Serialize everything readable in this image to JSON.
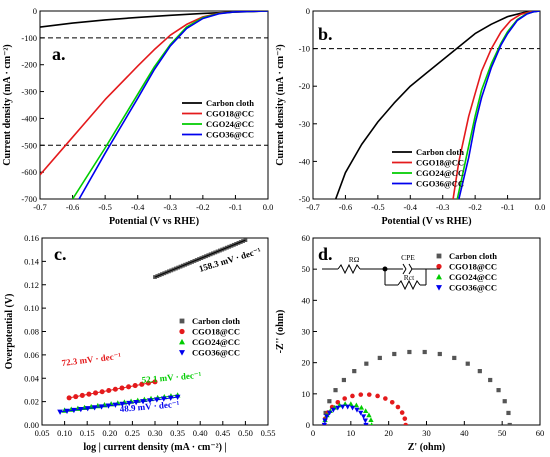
{
  "chart_data": [
    {
      "panel": "a.",
      "type": "line",
      "xlabel": "Potential (V vs RHE)",
      "ylabel": "Current density (mA · cm⁻²)",
      "xlim": [
        -0.7,
        0.0
      ],
      "ylim": [
        -700,
        0
      ],
      "xticks": [
        "-0.7",
        "-0.6",
        "-0.5",
        "-0.4",
        "-0.3",
        "-0.2",
        "-0.1",
        "0.0"
      ],
      "yticks": [
        "0",
        "-100",
        "-200",
        "-300",
        "-400",
        "-500",
        "-600",
        "-700"
      ],
      "hlines": [
        -100,
        -500
      ],
      "legend_position": "lower-right",
      "series": [
        {
          "name": "Carbon cloth",
          "color": "#000000",
          "points": [
            [
              -0.7,
              -60
            ],
            [
              -0.6,
              -45
            ],
            [
              -0.5,
              -33
            ],
            [
              -0.4,
              -24
            ],
            [
              -0.3,
              -16
            ],
            [
              -0.2,
              -9
            ],
            [
              -0.1,
              -4
            ],
            [
              0.0,
              0
            ]
          ]
        },
        {
          "name": "CGO18@CC",
          "color": "#e41a1c",
          "points": [
            [
              -0.7,
              -610
            ],
            [
              -0.6,
              -470
            ],
            [
              -0.5,
              -330
            ],
            [
              -0.4,
              -205
            ],
            [
              -0.35,
              -145
            ],
            [
              -0.3,
              -90
            ],
            [
              -0.25,
              -50
            ],
            [
              -0.2,
              -22
            ],
            [
              -0.15,
              -8
            ],
            [
              -0.1,
              -3
            ],
            [
              0.0,
              0
            ]
          ]
        },
        {
          "name": "CGO24@CC",
          "color": "#00cc00",
          "points": [
            [
              -0.6,
              -700
            ],
            [
              -0.5,
              -510
            ],
            [
              -0.4,
              -310
            ],
            [
              -0.35,
              -210
            ],
            [
              -0.3,
              -125
            ],
            [
              -0.25,
              -60
            ],
            [
              -0.2,
              -25
            ],
            [
              -0.15,
              -9
            ],
            [
              -0.1,
              -3
            ],
            [
              0.0,
              0
            ]
          ]
        },
        {
          "name": "CGO36@CC",
          "color": "#0000ee",
          "points": [
            [
              -0.58,
              -700
            ],
            [
              -0.5,
              -530
            ],
            [
              -0.4,
              -325
            ],
            [
              -0.35,
              -220
            ],
            [
              -0.3,
              -130
            ],
            [
              -0.25,
              -65
            ],
            [
              -0.2,
              -28
            ],
            [
              -0.15,
              -10
            ],
            [
              -0.1,
              -3
            ],
            [
              0.0,
              0
            ]
          ]
        }
      ]
    },
    {
      "panel": "b.",
      "type": "line",
      "xlabel": "Potential (V vs RHE)",
      "ylabel": "Current density (mA · cm⁻²)",
      "xlim": [
        -0.7,
        0.0
      ],
      "ylim": [
        -50,
        0
      ],
      "xticks": [
        "-0.7",
        "-0.6",
        "-0.5",
        "-0.4",
        "-0.3",
        "-0.2",
        "-0.1",
        "0.0"
      ],
      "yticks": [
        "0",
        "-10",
        "-20",
        "-30",
        "-40",
        "-50"
      ],
      "hlines": [
        -10
      ],
      "legend_position": "lower-right",
      "series": [
        {
          "name": "Carbon cloth",
          "color": "#000000",
          "points": [
            [
              -0.63,
              -50
            ],
            [
              -0.6,
              -43
            ],
            [
              -0.55,
              -35.5
            ],
            [
              -0.5,
              -29.5
            ],
            [
              -0.45,
              -24.5
            ],
            [
              -0.4,
              -20
            ],
            [
              -0.35,
              -16.5
            ],
            [
              -0.3,
              -13
            ],
            [
              -0.25,
              -9.5
            ],
            [
              -0.2,
              -6
            ],
            [
              -0.15,
              -3.5
            ],
            [
              -0.1,
              -1.5
            ],
            [
              -0.05,
              -0.4
            ],
            [
              0.0,
              0
            ]
          ]
        },
        {
          "name": "CGO18@CC",
          "color": "#e41a1c",
          "points": [
            [
              -0.268,
              -50
            ],
            [
              -0.25,
              -40
            ],
            [
              -0.22,
              -28
            ],
            [
              -0.2,
              -22
            ],
            [
              -0.18,
              -16
            ],
            [
              -0.15,
              -10
            ],
            [
              -0.12,
              -5.5
            ],
            [
              -0.09,
              -2.5
            ],
            [
              -0.06,
              -0.9
            ],
            [
              -0.03,
              -0.2
            ],
            [
              0.0,
              0
            ]
          ]
        },
        {
          "name": "CGO24@CC",
          "color": "#00cc00",
          "points": [
            [
              -0.255,
              -50
            ],
            [
              -0.23,
              -40
            ],
            [
              -0.2,
              -28
            ],
            [
              -0.18,
              -21
            ],
            [
              -0.15,
              -14
            ],
            [
              -0.12,
              -8.5
            ],
            [
              -0.1,
              -5.5
            ],
            [
              -0.07,
              -2.3
            ],
            [
              -0.04,
              -0.7
            ],
            [
              -0.02,
              -0.2
            ],
            [
              0.0,
              0
            ]
          ]
        },
        {
          "name": "CGO36@CC",
          "color": "#0000ee",
          "points": [
            [
              -0.25,
              -50
            ],
            [
              -0.22,
              -39
            ],
            [
              -0.2,
              -30
            ],
            [
              -0.18,
              -23
            ],
            [
              -0.15,
              -15
            ],
            [
              -0.12,
              -9
            ],
            [
              -0.1,
              -6
            ],
            [
              -0.07,
              -2.5
            ],
            [
              -0.04,
              -0.8
            ],
            [
              -0.02,
              -0.2
            ],
            [
              0.0,
              0
            ]
          ]
        }
      ]
    },
    {
      "panel": "c.",
      "type": "scatter",
      "xlabel": "log | current density (mA · cm⁻²) |",
      "ylabel": "Overpotential (V)",
      "xlim": [
        0.05,
        0.55
      ],
      "ylim": [
        0.0,
        0.16
      ],
      "xticks": [
        "0.05",
        "0.10",
        "0.15",
        "0.20",
        "0.25",
        "0.30",
        "0.35",
        "0.40",
        "0.45",
        "0.50",
        "0.55"
      ],
      "yticks": [
        "0.00",
        "0.02",
        "0.04",
        "0.06",
        "0.08",
        "0.10",
        "0.12",
        "0.14",
        "0.16"
      ],
      "legend_position": "right",
      "annotations": [
        {
          "text": "158.3 mV · dec⁻¹",
          "color": "#000000"
        },
        {
          "text": "72.3 mV · dec⁻¹",
          "color": "#e41a1c"
        },
        {
          "text": "52.1 mV · dec⁻¹",
          "color": "#00cc00"
        },
        {
          "text": "48.9 mV · dec⁻¹",
          "color": "#0000ee"
        }
      ],
      "series": [
        {
          "name": "Carbon cloth",
          "color": "#555555",
          "marker": "square",
          "x_start": 0.3,
          "x_end": 0.5,
          "y_start": 0.1266,
          "y_end": 0.1582,
          "count": 40
        },
        {
          "name": "CGO18@CC",
          "color": "#e41a1c",
          "marker": "circle",
          "x_start": 0.11,
          "x_end": 0.3,
          "y_start": 0.0232,
          "y_end": 0.0369,
          "count": 14
        },
        {
          "name": "CGO24@CC",
          "color": "#00cc00",
          "marker": "triangle-up",
          "x_start": 0.1,
          "x_end": 0.35,
          "y_start": 0.0125,
          "y_end": 0.0255,
          "count": 18
        },
        {
          "name": "CGO36@CC",
          "color": "#0000ee",
          "marker": "triangle-down",
          "x_start": 0.09,
          "x_end": 0.35,
          "y_start": 0.0112,
          "y_end": 0.0239,
          "count": 18
        }
      ]
    },
    {
      "panel": "d.",
      "type": "scatter",
      "xlabel": "Z' (ohm)",
      "ylabel": "-Z'' (ohm)",
      "xlim": [
        0,
        60
      ],
      "ylim": [
        0,
        60
      ],
      "xticks": [
        "0",
        "10",
        "20",
        "30",
        "40",
        "50",
        "60"
      ],
      "yticks": [
        "0",
        "10",
        "20",
        "30",
        "40",
        "50",
        "60"
      ],
      "legend_position": "top-right",
      "circuit_labels": [
        "RΩ",
        "CPE",
        "Rct"
      ],
      "series": [
        {
          "name": "Carbon cloth",
          "color": "#555555",
          "marker": "square",
          "arc_start": 3,
          "arc_end": 52,
          "arc_peak": 23.5,
          "count": 20
        },
        {
          "name": "CGO18@CC",
          "color": "#e41a1c",
          "marker": "circle",
          "arc_start": 3,
          "arc_end": 24.5,
          "arc_peak": 9.8,
          "count": 16
        },
        {
          "name": "CGO24@CC",
          "color": "#00cc00",
          "marker": "triangle-up",
          "arc_start": 3,
          "arc_end": 15.5,
          "arc_peak": 6.8,
          "count": 14
        },
        {
          "name": "CGO36@CC",
          "color": "#0000ee",
          "marker": "triangle-down",
          "arc_start": 3,
          "arc_end": 14,
          "arc_peak": 5.9,
          "count": 14
        }
      ]
    }
  ]
}
